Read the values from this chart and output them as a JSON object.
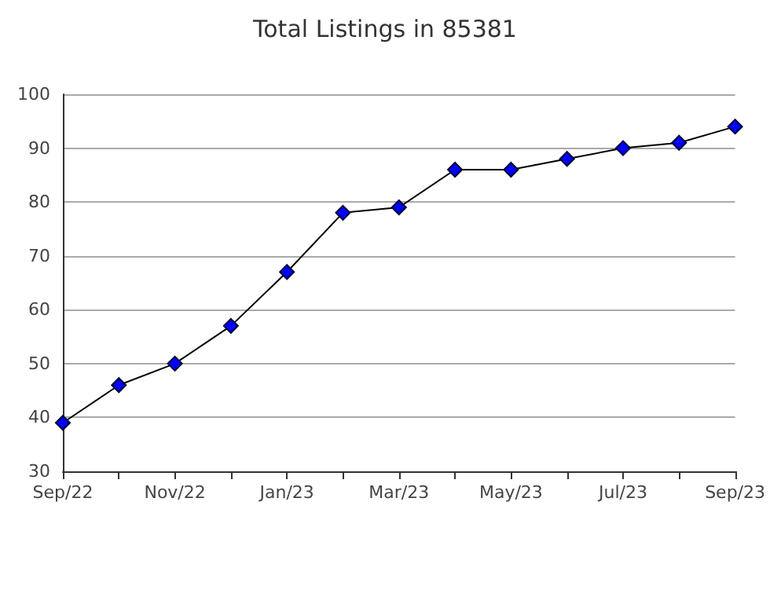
{
  "chart_data": {
    "type": "line",
    "title": "Total Listings in 85381",
    "categories": [
      "Sep/22",
      null,
      "Nov/22",
      null,
      "Jan/23",
      null,
      "Mar/23",
      null,
      "May/23",
      null,
      "Jul/23",
      null,
      "Sep/23"
    ],
    "series": [
      {
        "color": "#0000ff",
        "values": [
          39,
          46,
          50,
          57,
          67,
          78,
          79,
          86,
          86,
          88,
          90,
          91,
          94
        ]
      }
    ],
    "ylim": [
      30,
      100
    ],
    "yticks": [
      30,
      40,
      50,
      60,
      70,
      80,
      90,
      100
    ],
    "grid": "y",
    "marker": "diamond",
    "line_style": "solid"
  }
}
